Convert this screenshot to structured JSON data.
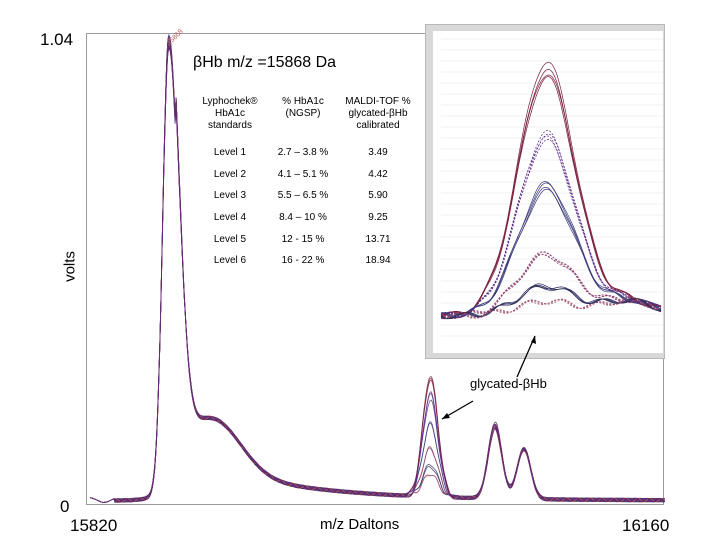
{
  "chart_data": {
    "type": "line",
    "title": "",
    "xlabel": "m/z Daltons",
    "ylabel": "volts",
    "xlim": [
      15820,
      16160
    ],
    "ylim": [
      0,
      1.04
    ],
    "x_tick_labels": [
      "15820",
      "16160"
    ],
    "y_tick_labels": [
      "0",
      "1.04"
    ],
    "grid": false,
    "peak_annotation": "βHb m/z =15868 Da",
    "glycated_annotation": "glycated-βHb",
    "peaks": [
      {
        "x": 15868,
        "y": 1.0
      },
      {
        "x": 16022,
        "y": 0.27
      },
      {
        "x": 16060,
        "y": 0.17
      },
      {
        "x": 16077,
        "y": 0.11
      }
    ],
    "glycated_peak_levels": [
      0.27,
      0.22,
      0.16,
      0.11,
      0.07,
      0.05
    ],
    "table": {
      "headers": [
        "Lyphochek® HbA1c standards",
        "% HbA1c (NGSP)",
        "MALDI-TOF % glycated-βHb calibrated"
      ],
      "rows": [
        [
          "Level 1",
          "2.7 – 3.8 %",
          "3.49"
        ],
        [
          "Level 2",
          "4.1 – 5.1 %",
          "4.42"
        ],
        [
          "Level 3",
          "5.5 – 6.5 %",
          "5.90"
        ],
        [
          "Level 4",
          "8.4 – 10 %",
          "9.25"
        ],
        [
          "Level 5",
          "12 - 15 %",
          "13.71"
        ],
        [
          "Level 6",
          "16 - 22 %",
          "18.94"
        ]
      ]
    },
    "inset": {
      "type": "line",
      "peak_levels": [
        1.0,
        0.72,
        0.52,
        0.25,
        0.12,
        0.06
      ]
    }
  },
  "colors": {
    "series": [
      "#7a1f3d",
      "#5a2a8a",
      "#3a3a7a",
      "#8a3a6a",
      "#2a2a5a",
      "#a05070"
    ]
  },
  "stamp": "15868"
}
